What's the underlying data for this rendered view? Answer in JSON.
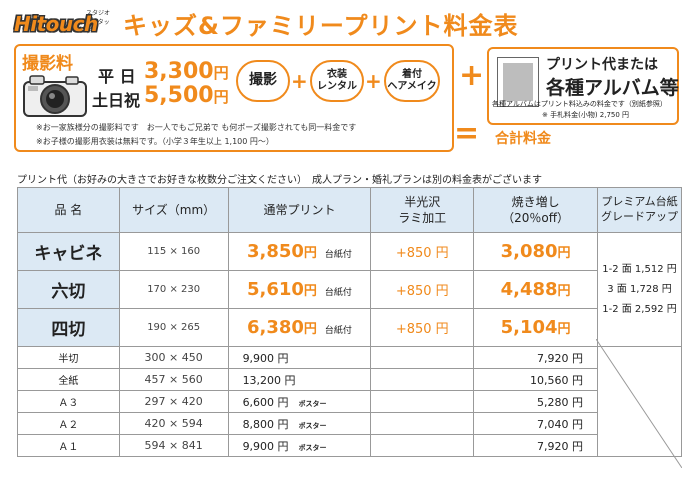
{
  "header": {
    "logo": "Hitouch",
    "logo_kana": "スタジオハイタッチ",
    "title": "キッズ&ファミリープリント料金表"
  },
  "session": {
    "label": "撮影料",
    "weekday_label": "平 日",
    "weekday_price": "3,300",
    "weekend_label": "土日祝",
    "weekend_price": "5,500",
    "yen": "円",
    "includes": [
      "撮影",
      "衣装\nレンタル",
      "着付\nヘアメイク"
    ],
    "plus": "+",
    "notes": [
      "※お一家族様分の撮影料です　お一人でもご兄弟で も何ポーズ撮影されても同一料金です",
      "※お子様の撮影用衣装は無料です。（小学３年生以上 1,100 円〜）"
    ]
  },
  "print_box": {
    "line1": "プリント代または",
    "line2": "各種アルバム等",
    "note1": "各種アルバムはプリント料込みの料金です（別紙参照）",
    "note2": "※ 手札料金(小物) 2,750 円"
  },
  "operators": {
    "plus": "+",
    "equal": "=",
    "total": "合計料金"
  },
  "intro": "プリント代（お好みの大きさでお好きな枚数分ご注文ください）　成人プラン・婚礼プランは別の料金表がございます",
  "table": {
    "headers": [
      "品 名",
      "サイズ（mm）",
      "通常プリント",
      "半光沢\nラミ加工",
      "焼き増し\n（20％off）",
      "プレミアム台紙\nグレードアップ"
    ],
    "premium_notes": [
      "1-2 面 1,512 円",
      "3 面 1,728 円",
      "1-2 面 2,592 円"
    ],
    "big_rows": [
      {
        "name": "キャビネ",
        "size": "115 × 160",
        "price": "3,850",
        "yen": "円",
        "daishi": "台紙付",
        "lami": "+850 円",
        "extra": "3,080",
        "extra_yen": "円"
      },
      {
        "name": "六切",
        "size": "170 × 230",
        "price": "5,610",
        "yen": "円",
        "daishi": "台紙付",
        "lami": "+850 円",
        "extra": "4,488",
        "extra_yen": "円"
      },
      {
        "name": "四切",
        "size": "190 × 265",
        "price": "6,380",
        "yen": "円",
        "daishi": "台紙付",
        "lami": "+850 円",
        "extra": "5,104",
        "extra_yen": "円"
      }
    ],
    "small_rows": [
      {
        "name": "半切",
        "size": "300 × 450",
        "price": "9,900 円",
        "poster": "",
        "extra": "7,920 円"
      },
      {
        "name": "全紙",
        "size": "457 × 560",
        "price": "13,200 円",
        "poster": "",
        "extra": "10,560 円"
      },
      {
        "name": "Ａ３",
        "size": "297 × 420",
        "price": "6,600 円",
        "poster": "ポスター",
        "extra": "5,280 円"
      },
      {
        "name": "Ａ２",
        "size": "420 × 594",
        "price": "8,800 円",
        "poster": "ポスター",
        "extra": "7,040 円"
      },
      {
        "name": "Ａ１",
        "size": "594 × 841",
        "price": "9,900 円",
        "poster": "ポスター",
        "extra": "7,920 円"
      }
    ]
  },
  "colors": {
    "accent": "#f08a1c",
    "header_bg": "#dce9f4"
  },
  "icons": {
    "camera": "camera-icon",
    "print": "photo-print-icon"
  }
}
